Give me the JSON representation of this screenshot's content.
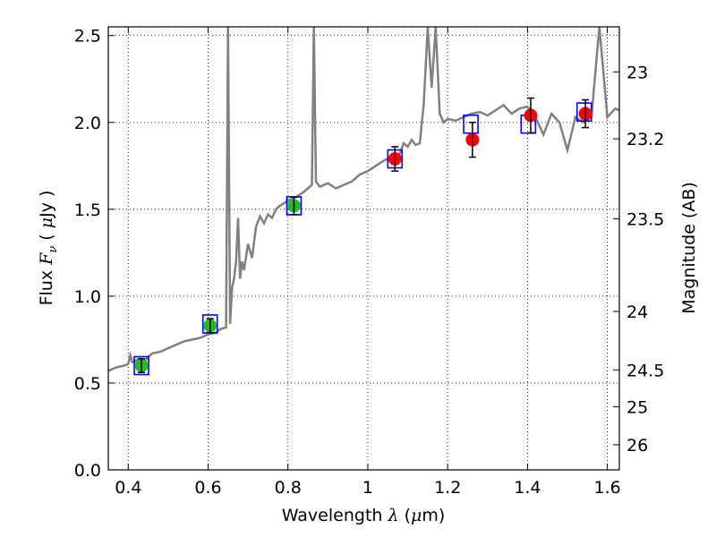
{
  "chart_data": {
    "type": "scatter",
    "title": "",
    "xlabel_prefix": "Wavelength",
    "xlabel_symbol": "λ",
    "xlabel_unit_open": "(",
    "xlabel_unit_mu": "μ",
    "xlabel_unit_rest": "m)",
    "ylabel_prefix": "Flux",
    "ylabel_symbol": "F",
    "ylabel_subscript": "ν",
    "ylabel_unit_open": "(",
    "ylabel_unit_mu": "μ",
    "ylabel_unit_rest": "Jy )",
    "y2label": "Magnitude (AB)",
    "xlim": [
      0.35,
      1.63
    ],
    "ylim": [
      0.0,
      2.55
    ],
    "grid": true,
    "x_ticks": [
      {
        "value": 0.4,
        "label": "0.4"
      },
      {
        "value": 0.6,
        "label": "0.6"
      },
      {
        "value": 0.8,
        "label": "0.8"
      },
      {
        "value": 1.0,
        "label": "1"
      },
      {
        "value": 1.2,
        "label": "1.2"
      },
      {
        "value": 1.4,
        "label": "1.4"
      },
      {
        "value": 1.6,
        "label": "1.6"
      }
    ],
    "y_ticks": [
      {
        "value": 0.0,
        "label": "0.0"
      },
      {
        "value": 0.5,
        "label": "0.5"
      },
      {
        "value": 1.0,
        "label": "1.0"
      },
      {
        "value": 1.5,
        "label": "1.5"
      },
      {
        "value": 2.0,
        "label": "2.0"
      },
      {
        "value": 2.5,
        "label": "2.5"
      }
    ],
    "y2_ticks": [
      {
        "value": 23,
        "label": "23"
      },
      {
        "value": 23.2,
        "label": "23.2"
      },
      {
        "value": 23.5,
        "label": "23.5"
      },
      {
        "value": 24,
        "label": "24"
      },
      {
        "value": 24.5,
        "label": "24.5"
      },
      {
        "value": 25,
        "label": "25"
      },
      {
        "value": 26,
        "label": "26"
      }
    ],
    "model_spectrum": {
      "color": "#808080",
      "points": [
        [
          0.35,
          0.57
        ],
        [
          0.37,
          0.59
        ],
        [
          0.39,
          0.6
        ],
        [
          0.4,
          0.61
        ],
        [
          0.405,
          0.66
        ],
        [
          0.41,
          0.62
        ],
        [
          0.42,
          0.63
        ],
        [
          0.43,
          0.64
        ],
        [
          0.44,
          0.62
        ],
        [
          0.45,
          0.65
        ],
        [
          0.46,
          0.67
        ],
        [
          0.48,
          0.68
        ],
        [
          0.5,
          0.7
        ],
        [
          0.52,
          0.72
        ],
        [
          0.54,
          0.74
        ],
        [
          0.56,
          0.75
        ],
        [
          0.58,
          0.76
        ],
        [
          0.6,
          0.78
        ],
        [
          0.62,
          0.79
        ],
        [
          0.63,
          0.81
        ],
        [
          0.645,
          0.82
        ],
        [
          0.65,
          2.55
        ],
        [
          0.655,
          0.84
        ],
        [
          0.66,
          1.05
        ],
        [
          0.665,
          1.1
        ],
        [
          0.67,
          1.2
        ],
        [
          0.675,
          1.45
        ],
        [
          0.68,
          1.1
        ],
        [
          0.685,
          1.2
        ],
        [
          0.69,
          1.15
        ],
        [
          0.7,
          1.3
        ],
        [
          0.71,
          1.22
        ],
        [
          0.72,
          1.4
        ],
        [
          0.73,
          1.46
        ],
        [
          0.74,
          1.42
        ],
        [
          0.75,
          1.47
        ],
        [
          0.76,
          1.45
        ],
        [
          0.77,
          1.5
        ],
        [
          0.78,
          1.52
        ],
        [
          0.8,
          1.55
        ],
        [
          0.82,
          1.57
        ],
        [
          0.84,
          1.6
        ],
        [
          0.86,
          1.64
        ],
        [
          0.865,
          2.55
        ],
        [
          0.87,
          1.66
        ],
        [
          0.88,
          1.63
        ],
        [
          0.9,
          1.65
        ],
        [
          0.92,
          1.62
        ],
        [
          0.94,
          1.64
        ],
        [
          0.96,
          1.66
        ],
        [
          0.98,
          1.7
        ],
        [
          1.0,
          1.72
        ],
        [
          1.02,
          1.75
        ],
        [
          1.04,
          1.78
        ],
        [
          1.06,
          1.8
        ],
        [
          1.08,
          1.82
        ],
        [
          1.09,
          1.88
        ],
        [
          1.1,
          1.86
        ],
        [
          1.11,
          1.9
        ],
        [
          1.12,
          1.87
        ],
        [
          1.13,
          1.88
        ],
        [
          1.14,
          2.1
        ],
        [
          1.15,
          2.55
        ],
        [
          1.16,
          2.2
        ],
        [
          1.17,
          2.55
        ],
        [
          1.18,
          2.05
        ],
        [
          1.19,
          2.0
        ],
        [
          1.2,
          2.02
        ],
        [
          1.22,
          2.01
        ],
        [
          1.24,
          2.03
        ],
        [
          1.26,
          2.05
        ],
        [
          1.28,
          2.06
        ],
        [
          1.3,
          2.04
        ],
        [
          1.32,
          2.07
        ],
        [
          1.34,
          2.1
        ],
        [
          1.36,
          2.05
        ],
        [
          1.38,
          2.08
        ],
        [
          1.4,
          2.09
        ],
        [
          1.42,
          2.03
        ],
        [
          1.44,
          1.93
        ],
        [
          1.46,
          2.05
        ],
        [
          1.48,
          2.0
        ],
        [
          1.5,
          1.84
        ],
        [
          1.52,
          2.03
        ],
        [
          1.54,
          2.0
        ],
        [
          1.56,
          2.03
        ],
        [
          1.58,
          2.55
        ],
        [
          1.6,
          2.03
        ],
        [
          1.62,
          2.08
        ],
        [
          1.63,
          2.07
        ]
      ]
    },
    "model_photometry": {
      "marker": "open-square",
      "color": "#0000ff",
      "points": [
        {
          "x": 0.433,
          "y": 0.6
        },
        {
          "x": 0.605,
          "y": 0.84
        },
        {
          "x": 0.815,
          "y": 1.52
        },
        {
          "x": 1.068,
          "y": 1.79
        },
        {
          "x": 1.258,
          "y": 1.99
        },
        {
          "x": 1.402,
          "y": 1.99
        },
        {
          "x": 1.542,
          "y": 2.06
        }
      ]
    },
    "optical_data": {
      "marker": "filled-circle",
      "color": "#22bb22",
      "points": [
        {
          "x": 0.433,
          "y": 0.6,
          "err": 0.04
        },
        {
          "x": 0.605,
          "y": 0.83,
          "err": 0.04
        },
        {
          "x": 0.815,
          "y": 1.52,
          "err": 0.05
        }
      ]
    },
    "nir_data": {
      "marker": "filled-circle",
      "color": "#ff0000",
      "points": [
        {
          "x": 1.068,
          "y": 1.79,
          "err": 0.07
        },
        {
          "x": 1.262,
          "y": 1.9,
          "err": 0.1
        },
        {
          "x": 1.408,
          "y": 2.04,
          "err": 0.1
        },
        {
          "x": 1.545,
          "y": 2.05,
          "err": 0.08
        }
      ]
    }
  }
}
